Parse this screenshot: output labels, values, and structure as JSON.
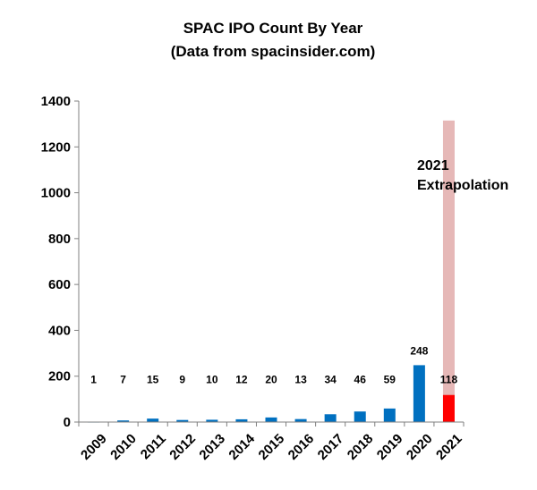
{
  "chart_data": {
    "type": "bar",
    "title": "SPAC IPO Count By Year",
    "subtitle": "(Data from spacinsider.com)",
    "categories": [
      "2009",
      "2010",
      "2011",
      "2012",
      "2013",
      "2014",
      "2015",
      "2016",
      "2017",
      "2018",
      "2019",
      "2020",
      "2021"
    ],
    "series": [
      {
        "values": [
          1,
          7,
          15,
          9,
          10,
          12,
          20,
          13,
          34,
          46,
          59,
          248,
          null
        ],
        "color": "#0070c0"
      },
      {
        "values": [
          null,
          null,
          null,
          null,
          null,
          null,
          null,
          null,
          null,
          null,
          null,
          null,
          118
        ],
        "color": "#ff0000"
      },
      {
        "values": [
          null,
          null,
          null,
          null,
          null,
          null,
          null,
          null,
          null,
          null,
          null,
          null,
          1315
        ],
        "color": "#e6b8b7"
      }
    ],
    "data_labels": [
      "1",
      "7",
      "15",
      "9",
      "10",
      "12",
      "20",
      "13",
      "34",
      "46",
      "59",
      "248",
      "118"
    ],
    "yticks": [
      0,
      200,
      400,
      600,
      800,
      1000,
      1200,
      1400
    ],
    "ylim": [
      0,
      1400
    ],
    "xlabel": "",
    "ylabel": "",
    "grid": false,
    "legend": "none",
    "annotation": {
      "line1": "2021",
      "line2": "Extrapolation"
    }
  }
}
